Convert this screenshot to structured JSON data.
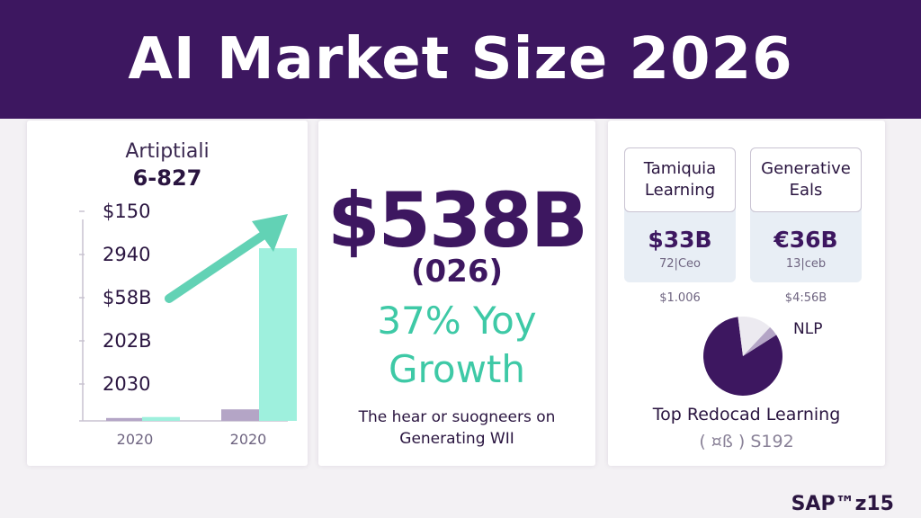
{
  "title": "AI Market Size 2026",
  "panel_left": {
    "title": "Artiptiali",
    "subtitle": "6-827"
  },
  "chart_data": {
    "type": "bar",
    "y_tick_labels": [
      "$150",
      "2940",
      "$58B",
      "202B",
      "2030"
    ],
    "categories": [
      "2020",
      "2020"
    ],
    "series": [
      {
        "values": [
          3,
          12
        ],
        "color": "#b4a5c6"
      },
      {
        "values": [
          4,
          180
        ],
        "color": "#9ef0dd"
      }
    ],
    "ylim": [
      0,
      210
    ],
    "grid": false,
    "trend_arrow_color": "#62d2b5"
  },
  "panel_center": {
    "value": "$538B",
    "year": "(026)",
    "growth_line1": "37% Yoy",
    "growth_line2": "Growth",
    "note_line1": "The hear or suogneers on",
    "note_line2": "Generating WII"
  },
  "panel_right": {
    "cards": [
      {
        "caption_line1": "Tamiquia",
        "caption_line2": "Learning",
        "value": "$33B",
        "unit": "72|Ceo",
        "small": "$1.006"
      },
      {
        "caption_line1": "Generative",
        "caption_line2": "Eals",
        "value": "€36B",
        "unit": "13|ceb",
        "small": "$4:56B"
      }
    ],
    "pie": {
      "label": "NLP",
      "slices": [
        {
          "value": 82,
          "color": "#3d1760"
        },
        {
          "value": 14,
          "color": "#eceaf0"
        },
        {
          "value": 4,
          "color": "#b4a5c6"
        }
      ]
    },
    "title": "Top Redocad Learning",
    "subtitle": "( ¤ß ) S192"
  },
  "brand": "SAP™z15"
}
